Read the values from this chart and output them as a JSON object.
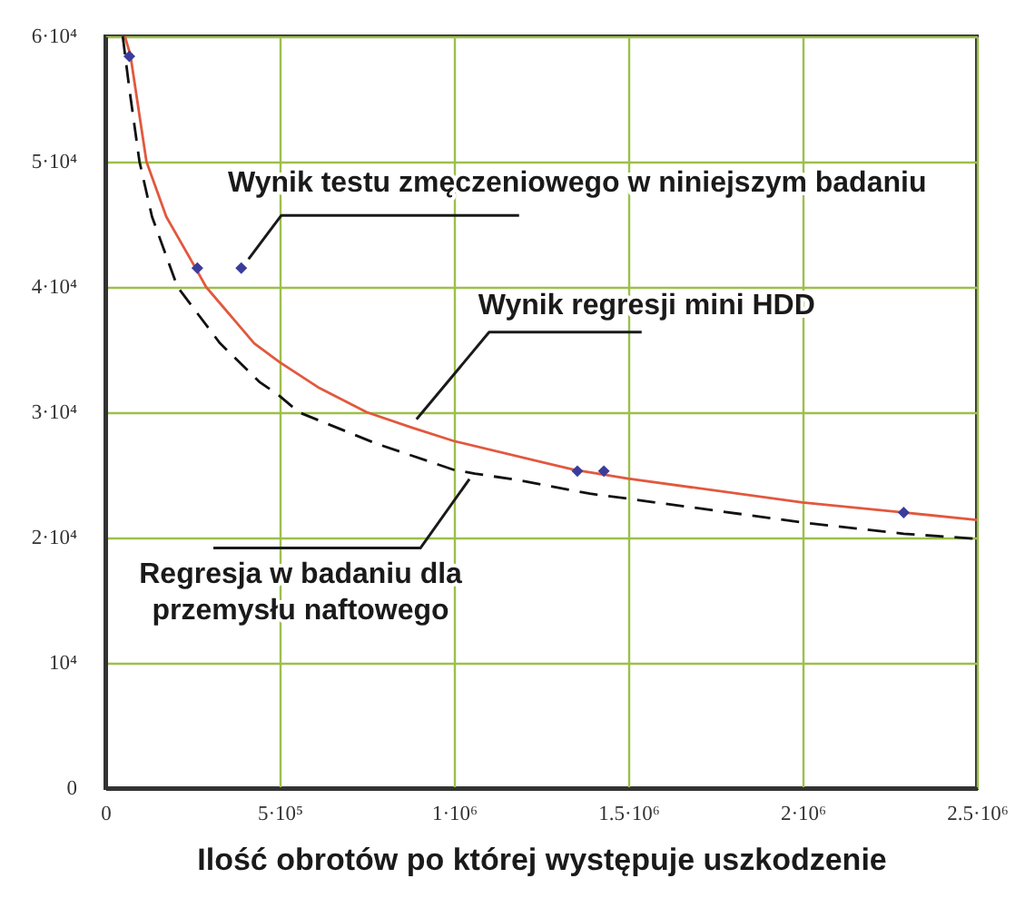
{
  "chart_data": {
    "type": "line",
    "xlabel": "Ilość obrotów po której występuje uszkodzenie",
    "xlim": [
      0,
      2500000
    ],
    "xticks": [
      0,
      {
        "value": 500000,
        "label": "5·10⁵"
      },
      {
        "value": 1000000,
        "label": "1·10⁶"
      },
      {
        "value": 1500000,
        "label": "1.5·10⁶"
      },
      {
        "value": 2000000,
        "label": "2·10⁶"
      },
      {
        "value": 2500000,
        "label": "2.5·10⁶"
      }
    ],
    "ylim": [
      0,
      60000
    ],
    "yticks": [
      0,
      {
        "value": 10000,
        "label": "10⁴"
      },
      {
        "value": 20000,
        "label": "2·10⁴"
      },
      {
        "value": 30000,
        "label": "3·10⁴"
      },
      {
        "value": 40000,
        "label": "4·10⁴"
      },
      {
        "value": 50000,
        "label": "5·10⁴"
      },
      {
        "value": 60000,
        "label": "6·10⁴"
      }
    ],
    "grid": true,
    "series": [
      {
        "color": "#e2583e",
        "line_style": "solid",
        "x": [
          56000,
          72000,
          118000,
          175000,
          261000,
          289000,
          427000,
          500000,
          610000,
          750000,
          877000,
          1000000,
          1345000,
          1500000,
          2000000,
          2290000,
          2500000
        ],
        "values": [
          60000,
          58500,
          50000,
          45600,
          41400,
          40000,
          35500,
          34000,
          32000,
          30000,
          28800,
          27700,
          25400,
          24700,
          22800,
          22000,
          21400
        ]
      },
      {
        "color": "#111111",
        "line_style": "dashed",
        "x": [
          50000,
          69000,
          98000,
          134000,
          207000,
          329000,
          443000,
          500000,
          555000,
          777000,
          1000000,
          1060000,
          1180000,
          1390000,
          1500000,
          2000000,
          2290000,
          2500000
        ],
        "values": [
          60000,
          55800,
          50000,
          45600,
          40000,
          35500,
          32400,
          31300,
          30000,
          27500,
          25400,
          25100,
          24600,
          23500,
          23100,
          21200,
          20300,
          19900
        ]
      },
      {
        "type": "scatter",
        "color": "#3a3c9c",
        "marker": "diamond",
        "x": [
          69000,
          264000,
          390000,
          1354000,
          1430000,
          2290000
        ],
        "values": [
          58400,
          41500,
          41500,
          25300,
          25300,
          22000
        ]
      }
    ],
    "annotations": [
      {
        "text": "Wynik testu zmęczeniowego w niniejszym badaniu",
        "x": 390000,
        "y": 41500
      },
      {
        "text": "Wynik regresji mini HDD",
        "x": 877000,
        "y": 29000
      },
      {
        "text": "Regresja w badaniu dla przemysłu naftowego",
        "x": 1060000,
        "y": 25100
      }
    ]
  }
}
